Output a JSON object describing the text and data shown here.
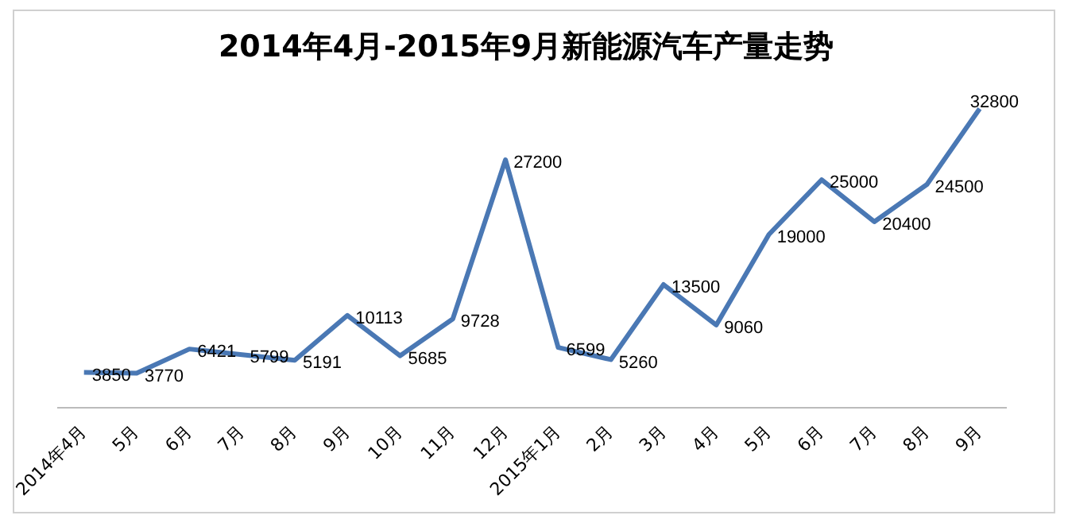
{
  "chart_data": {
    "type": "line",
    "title": "2014年4月-2015年9月新能源汽车产量走势",
    "categories": [
      "2014年4月",
      "5月",
      "6月",
      "7月",
      "8月",
      "9月",
      "10月",
      "11月",
      "12月",
      "2015年1月",
      "2月",
      "3月",
      "4月",
      "5月",
      "6月",
      "7月",
      "8月",
      "9月"
    ],
    "series": [
      {
        "color": "#4a78b4",
        "values": [
          3850,
          3770,
          6421,
          5799,
          5191,
          10113,
          5685,
          9728,
          27200,
          6599,
          5260,
          13500,
          9060,
          19000,
          25000,
          20400,
          24500,
          32800
        ]
      }
    ],
    "data_labels": true,
    "grid": false,
    "legend": false,
    "marker": "none",
    "line_style": "solid"
  }
}
